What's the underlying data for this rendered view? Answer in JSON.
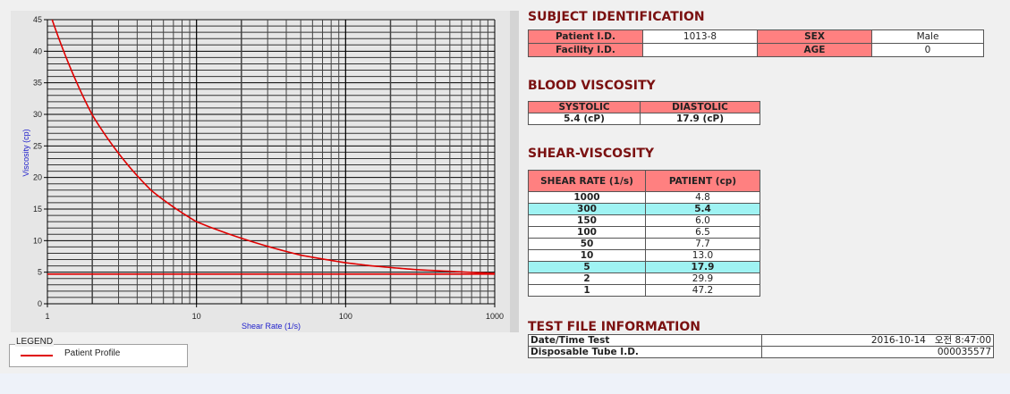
{
  "chart_data": {
    "type": "line",
    "xlabel": "Shear Rate (1/s)",
    "ylabel": "Viscosity (cp)",
    "xscale": "log",
    "xlim": [
      1,
      1000
    ],
    "ylim": [
      0,
      45
    ],
    "xticks": [
      "1",
      "10",
      "100",
      "1000"
    ],
    "yticks": [
      "0",
      "5",
      "10",
      "15",
      "20",
      "25",
      "30",
      "35",
      "40",
      "45"
    ],
    "grid": true,
    "legend_placement": "bottom-left",
    "series": [
      {
        "name": "Patient Profile",
        "color": "#e00000",
        "x": [
          1,
          2,
          5,
          10,
          50,
          100,
          150,
          300,
          1000
        ],
        "y": [
          47.2,
          29.9,
          17.9,
          13.0,
          7.7,
          6.5,
          6.0,
          5.4,
          4.8
        ]
      },
      {
        "color": "#e00000",
        "x": [
          1,
          1000
        ],
        "y": [
          4.7,
          4.7
        ]
      }
    ]
  },
  "legend": {
    "title": "LEGEND",
    "items": [
      "Patient Profile"
    ]
  },
  "subject": {
    "title": "SUBJECT IDENTIFICATION",
    "patient_id_label": "Patient I.D.",
    "patient_id": "1013-8",
    "sex_label": "SEX",
    "sex": "Male",
    "facility_label": "Facility I.D.",
    "facility": "",
    "age_label": "AGE",
    "age": "0"
  },
  "blood": {
    "title": "BLOOD VISCOSITY",
    "systolic_label": "SYSTOLIC",
    "diastolic_label": "DIASTOLIC",
    "systolic": "5.4 (cP)",
    "diastolic": "17.9 (cP)"
  },
  "shear": {
    "title": "SHEAR-VISCOSITY",
    "headers": [
      "SHEAR RATE (1/s)",
      "PATIENT (cp)"
    ],
    "rows": [
      {
        "rate": "1000",
        "value": "4.8",
        "highlight": false
      },
      {
        "rate": "300",
        "value": "5.4",
        "highlight": true
      },
      {
        "rate": "150",
        "value": "6.0",
        "highlight": false
      },
      {
        "rate": "100",
        "value": "6.5",
        "highlight": false
      },
      {
        "rate": "50",
        "value": "7.7",
        "highlight": false
      },
      {
        "rate": "10",
        "value": "13.0",
        "highlight": false
      },
      {
        "rate": "5",
        "value": "17.9",
        "highlight": true
      },
      {
        "rate": "2",
        "value": "29.9",
        "highlight": false
      },
      {
        "rate": "1",
        "value": "47.2",
        "highlight": false
      }
    ],
    "highlight_color": "#9ff3f3"
  },
  "testfile": {
    "title": "TEST FILE INFORMATION",
    "date_label": "Date/Time Test",
    "date": "2016-10-14   오전 8:47:00",
    "tube_label": "Disposable Tube I.D.",
    "tube": "000035577"
  }
}
